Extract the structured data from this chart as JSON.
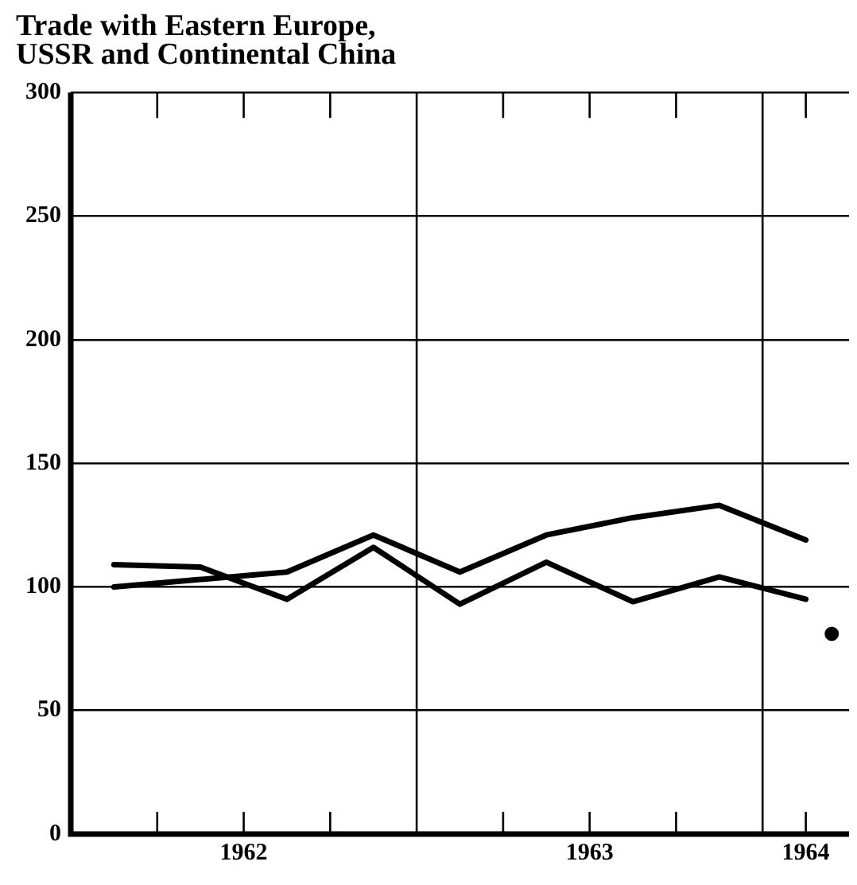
{
  "chart_data": {
    "type": "line",
    "title": [
      "Trade with Eastern Europe,",
      "USSR and Continental China"
    ],
    "x": [
      1962.125,
      1962.375,
      1962.625,
      1962.875,
      1963.125,
      1963.375,
      1963.625,
      1963.875,
      1964.125
    ],
    "series": [
      {
        "color": "#000000",
        "values": [
          109,
          108,
          95,
          116,
          93,
          110,
          94,
          104,
          95
        ]
      },
      {
        "color": "#000000",
        "values": [
          100,
          103,
          106,
          121,
          106,
          121,
          128,
          133,
          119
        ]
      },
      {
        "type": "scatter",
        "marker": "circle",
        "color": "#000000",
        "x": [
          1964.2
        ],
        "values": [
          81
        ]
      }
    ],
    "xlim": [
      1962,
      1964.25
    ],
    "xticks": [
      {
        "value": 1962.25,
        "label": null
      },
      {
        "value": 1962.5,
        "label": "1962"
      },
      {
        "value": 1962.75,
        "label": null
      },
      {
        "value": 1963.25,
        "label": null
      },
      {
        "value": 1963.5,
        "label": "1963"
      },
      {
        "value": 1963.75,
        "label": null
      },
      {
        "value": 1964.125,
        "label": "1964"
      }
    ],
    "ylim": [
      0,
      300
    ],
    "yticks": [
      0,
      50,
      100,
      150,
      200,
      250,
      300
    ],
    "ref_lines": [
      {
        "axis": "x",
        "value": 1963,
        "label": null
      },
      {
        "axis": "x",
        "value": 1964,
        "label": null
      }
    ],
    "grid": "y",
    "legend": false,
    "marker": "none",
    "line_style": "solid"
  }
}
